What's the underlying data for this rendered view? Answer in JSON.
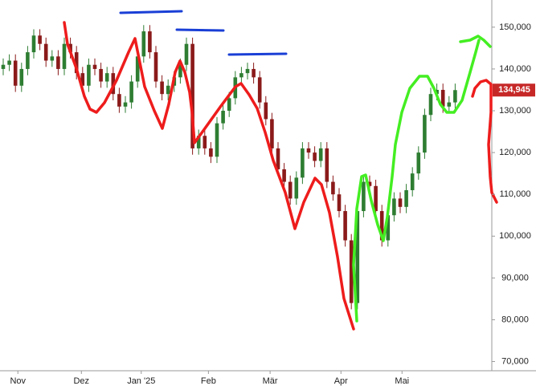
{
  "chart_data": {
    "type": "candlestick",
    "categories": [
      null,
      null,
      null,
      null,
      null,
      null,
      null,
      null,
      null,
      null,
      null,
      null,
      null,
      null,
      null,
      null,
      null,
      null,
      null,
      null,
      null,
      null,
      null,
      null,
      null,
      null,
      null,
      null,
      null,
      null,
      null,
      null,
      null,
      null,
      null,
      null,
      null,
      null,
      null,
      null,
      null,
      null,
      null,
      null,
      null,
      null,
      null,
      null,
      null,
      null,
      null,
      null,
      null,
      null,
      null,
      null,
      null,
      null,
      null,
      null,
      null,
      null,
      null,
      null,
      null,
      null,
      null,
      null,
      null,
      null,
      null,
      null,
      null,
      null,
      null
    ],
    "open": [
      140000,
      141000,
      142000,
      136000,
      140000,
      144000,
      148000,
      146000,
      142000,
      143000,
      140000,
      146000,
      144000,
      139000,
      136000,
      141000,
      140000,
      137000,
      139000,
      134000,
      131000,
      132000,
      137000,
      143000,
      149000,
      144000,
      137000,
      134000,
      136000,
      138000,
      141000,
      146000,
      121000,
      124000,
      121000,
      119000,
      127000,
      130000,
      133000,
      138000,
      139000,
      140000,
      138000,
      132000,
      128000,
      121000,
      116000,
      113000,
      109000,
      114000,
      121000,
      120000,
      118000,
      121000,
      113000,
      110000,
      106000,
      99000,
      84000,
      106000,
      113000,
      112000,
      106000,
      99000,
      105000,
      109000,
      107000,
      111000,
      115000,
      120000,
      129000,
      134000,
      135000,
      131000,
      132000
    ],
    "high": [
      142500,
      143500,
      143500,
      141500,
      145500,
      149500,
      149500,
      147500,
      144500,
      144500,
      147500,
      147500,
      145500,
      140500,
      142500,
      142500,
      141500,
      140500,
      140500,
      135500,
      133500,
      138500,
      144500,
      150500,
      150500,
      145500,
      138500,
      137500,
      139500,
      142500,
      147500,
      147500,
      125500,
      125500,
      122500,
      128500,
      131500,
      134500,
      139500,
      140500,
      141500,
      141500,
      139500,
      133500,
      129500,
      122500,
      117500,
      114500,
      115500,
      122500,
      122500,
      121500,
      122500,
      122500,
      114500,
      111500,
      107500,
      100500,
      107500,
      114500,
      114500,
      113500,
      107500,
      106500,
      110500,
      110500,
      112500,
      116500,
      121500,
      130500,
      135500,
      136500,
      136500,
      133500,
      136500
    ],
    "low": [
      138500,
      139500,
      134500,
      134500,
      138500,
      142500,
      144500,
      140500,
      140500,
      138500,
      138500,
      142500,
      137500,
      134500,
      134500,
      138500,
      135500,
      135500,
      132500,
      129500,
      129500,
      130500,
      135500,
      141500,
      142500,
      135500,
      132500,
      132500,
      134500,
      136500,
      139500,
      119500,
      119500,
      119500,
      117500,
      117500,
      125500,
      128500,
      131500,
      136500,
      137500,
      136500,
      130500,
      126500,
      119500,
      114500,
      111500,
      107500,
      107500,
      112500,
      118500,
      116500,
      116500,
      111500,
      108500,
      104500,
      97500,
      82500,
      82500,
      104500,
      110500,
      104500,
      97500,
      97500,
      103500,
      105500,
      105500,
      109500,
      113500,
      118500,
      127500,
      132500,
      129500,
      129500,
      130500
    ],
    "close": [
      141000,
      142000,
      136000,
      140000,
      144000,
      148000,
      146000,
      142000,
      143000,
      140000,
      146000,
      144000,
      139000,
      136000,
      141000,
      140000,
      137000,
      139000,
      134000,
      131000,
      132000,
      137000,
      143000,
      149000,
      144000,
      137000,
      134000,
      136000,
      138000,
      141000,
      146000,
      121000,
      124000,
      121000,
      119000,
      127000,
      130000,
      133000,
      138000,
      139000,
      140000,
      138000,
      132000,
      128000,
      121000,
      116000,
      113000,
      109000,
      114000,
      121000,
      120000,
      118000,
      121000,
      113000,
      110000,
      106000,
      99000,
      84000,
      106000,
      113000,
      112000,
      106000,
      99000,
      105000,
      109000,
      107000,
      111000,
      115000,
      120000,
      129000,
      134000,
      135000,
      131000,
      132000,
      134945
    ],
    "up_color": "#2e7d32",
    "down_color": "#8b1a1a",
    "last_price": {
      "value": 134945,
      "label": "134,945"
    },
    "last_price_color": "#c62828",
    "ylim": [
      67800,
      156500
    ],
    "yticks": [
      {
        "value": 70000,
        "label": "70,000"
      },
      {
        "value": 80000,
        "label": "80,000"
      },
      {
        "value": 90000,
        "label": "90,000"
      },
      {
        "value": 100000,
        "label": "100,000"
      },
      {
        "value": 110000,
        "label": "110,000"
      },
      {
        "value": 120000,
        "label": "120,000"
      },
      {
        "value": 130000,
        "label": "130,000"
      },
      {
        "value": 140000,
        "label": "140,000"
      },
      {
        "value": 150000,
        "label": "150,000"
      }
    ],
    "xticks": [
      {
        "value": 2.4,
        "label": "Nov"
      },
      {
        "value": 12.8,
        "label": "Dez"
      },
      {
        "value": 22.6,
        "label": "Jan '25"
      },
      {
        "value": 33.6,
        "label": "Feb"
      },
      {
        "value": 43.7,
        "label": "Mär"
      },
      {
        "value": 55.3,
        "label": "Apr"
      },
      {
        "value": 65.3,
        "label": "Mai"
      }
    ]
  }
}
